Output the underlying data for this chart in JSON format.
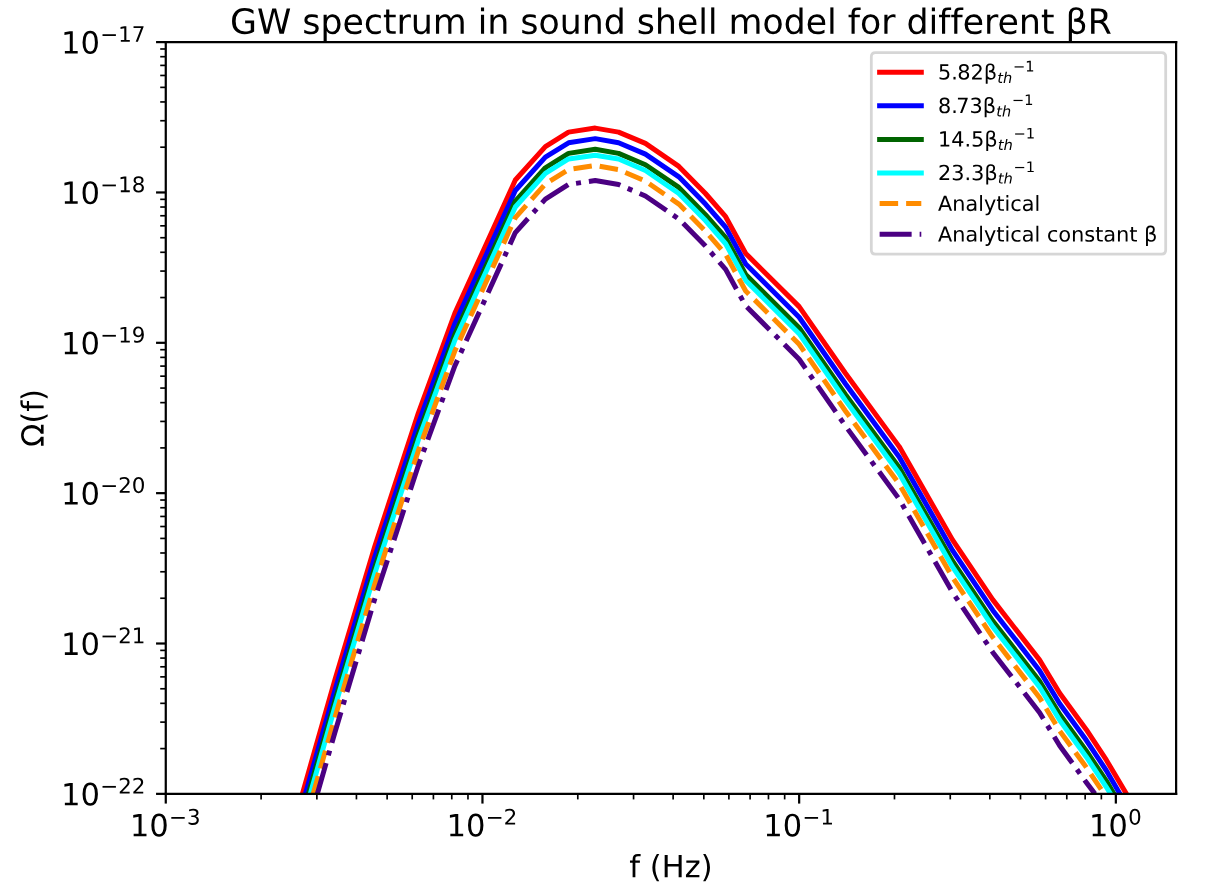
{
  "chart_data": {
    "type": "line",
    "title": "GW spectrum in sound shell model for different βR",
    "xlabel": "f (Hz)",
    "ylabel": "Ω(f)",
    "log": "xy",
    "grid": false,
    "legend": "top right",
    "xlim": [
      0.001,
      1.55
    ],
    "ylim": [
      1e-22,
      1e-17
    ],
    "xticks": [
      {
        "value": 0.001,
        "label": "10$^{−3}$"
      },
      {
        "value": 0.01,
        "label": "10$^{−2}$"
      },
      {
        "value": 0.1,
        "label": "10$^{−1}$"
      },
      {
        "value": 1,
        "label": "10$^{0}$"
      }
    ],
    "yticks": [
      {
        "value": 1e-22,
        "label": "10$^{−22}$"
      },
      {
        "value": 1e-21,
        "label": "10$^{−21}$"
      },
      {
        "value": 1e-20,
        "label": "10$^{−20}$"
      },
      {
        "value": 1e-19,
        "label": "10$^{−19}$"
      },
      {
        "value": 1e-18,
        "label": "10$^{−18}$"
      },
      {
        "value": 1e-17,
        "label": "10$^{−17}$"
      }
    ],
    "series": [
      {
        "name": "5.82β$_{th}$$^{−1}$",
        "color": "#ff0000",
        "line_style": "solid",
        "x": [
          0.0027,
          0.00342,
          0.00457,
          0.00627,
          0.00818,
          0.0102,
          0.0127,
          0.0158,
          0.0187,
          0.0227,
          0.0269,
          0.0327,
          0.0417,
          0.0506,
          0.0586,
          0.0678,
          0.1,
          0.14,
          0.207,
          0.305,
          0.409,
          0.574,
          0.665,
          0.807,
          0.933,
          1.08
        ],
        "values": [
          1e-22,
          5.73e-22,
          4.42e-21,
          3.4e-20,
          1.57e-19,
          4.37e-19,
          1.21e-18,
          2.02e-18,
          2.52e-18,
          2.68e-18,
          2.52e-18,
          2.12e-18,
          1.49e-18,
          9.84e-19,
          6.9e-19,
          3.93e-19,
          1.74e-19,
          6.27e-20,
          2.04e-20,
          4.89e-21,
          1.95e-21,
          7.78e-22,
          4.67e-22,
          2.67e-22,
          1.68e-22,
          1e-22
        ]
      },
      {
        "name": "8.73β$_{th}$$^{−1}$",
        "color": "#0000ff",
        "line_style": "solid",
        "x": [
          0.00276,
          0.00342,
          0.00457,
          0.00627,
          0.00818,
          0.0102,
          0.0127,
          0.0158,
          0.0187,
          0.0227,
          0.0269,
          0.0327,
          0.0417,
          0.0506,
          0.0586,
          0.0678,
          0.1,
          0.14,
          0.207,
          0.305,
          0.409,
          0.574,
          0.665,
          0.807,
          0.933,
          1.03
        ],
        "values": [
          1e-22,
          4.88e-22,
          3.76e-21,
          2.89e-20,
          1.34e-19,
          3.72e-19,
          1.03e-18,
          1.72e-18,
          2.14e-18,
          2.28e-18,
          2.14e-18,
          1.8e-18,
          1.27e-18,
          8.37e-19,
          5.87e-19,
          3.34e-19,
          1.48e-19,
          5.34e-20,
          1.74e-20,
          4.16e-21,
          1.66e-21,
          6.62e-22,
          3.97e-22,
          2.27e-22,
          1.43e-22,
          1e-22
        ]
      },
      {
        "name": "14.5β$_{th}$$^{−1}$",
        "color": "#006400",
        "line_style": "solid",
        "x": [
          0.00282,
          0.00342,
          0.00457,
          0.00627,
          0.00818,
          0.0102,
          0.0127,
          0.0158,
          0.0187,
          0.0227,
          0.0269,
          0.0327,
          0.0417,
          0.0506,
          0.0586,
          0.0678,
          0.1,
          0.14,
          0.207,
          0.305,
          0.409,
          0.574,
          0.665,
          0.807,
          0.933,
          0.986
        ],
        "values": [
          1e-22,
          4.15e-22,
          3.2e-21,
          2.46e-20,
          1.14e-19,
          3.16e-19,
          8.76e-19,
          1.46e-18,
          1.82e-18,
          1.94e-18,
          1.82e-18,
          1.53e-18,
          1.08e-18,
          7.12e-19,
          5e-19,
          2.85e-19,
          1.26e-19,
          4.54e-20,
          1.48e-20,
          3.54e-21,
          1.41e-21,
          5.63e-22,
          3.38e-22,
          1.93e-22,
          1.22e-22,
          1e-22
        ]
      },
      {
        "name": "23.3β$_{th}$$^{−1}$",
        "color": "#00ffff",
        "line_style": "solid",
        "x": [
          0.00286,
          0.00342,
          0.00457,
          0.00627,
          0.00818,
          0.0102,
          0.0127,
          0.0158,
          0.0187,
          0.0227,
          0.0269,
          0.0327,
          0.0417,
          0.0506,
          0.0586,
          0.0678,
          0.1,
          0.14,
          0.207,
          0.305,
          0.409,
          0.574,
          0.665,
          0.807,
          0.933,
          0.962
        ],
        "values": [
          1e-22,
          3.79e-22,
          2.92e-21,
          2.25e-20,
          1.04e-19,
          2.89e-19,
          8e-19,
          1.34e-18,
          1.67e-18,
          1.77e-18,
          1.67e-18,
          1.4e-18,
          9.85e-19,
          6.5e-19,
          4.56e-19,
          2.6e-19,
          1.15e-19,
          4.14e-20,
          1.35e-20,
          3.23e-21,
          1.29e-21,
          5.14e-22,
          3.09e-22,
          1.76e-22,
          1.11e-22,
          1e-22
        ]
      },
      {
        "name": "Analytical",
        "color": "#ff8c00",
        "line_style": "dashed",
        "x": [
          0.00292,
          0.00342,
          0.00457,
          0.00627,
          0.00818,
          0.0102,
          0.0127,
          0.0158,
          0.0187,
          0.0227,
          0.0269,
          0.0327,
          0.0417,
          0.0506,
          0.0586,
          0.0678,
          0.1,
          0.14,
          0.207,
          0.305,
          0.409,
          0.574,
          0.665,
          0.807,
          0.918
        ],
        "values": [
          1e-22,
          3.22e-22,
          2.48e-21,
          1.91e-20,
          8.82e-20,
          2.46e-19,
          6.8e-19,
          1.14e-18,
          1.42e-18,
          1.51e-18,
          1.42e-18,
          1.19e-18,
          8.37e-19,
          5.53e-19,
          3.88e-19,
          2.21e-19,
          9.78e-20,
          3.52e-20,
          1.15e-20,
          2.75e-21,
          1.1e-21,
          4.37e-22,
          2.62e-22,
          1.5e-22,
          1e-22
        ]
      },
      {
        "name": "Analytical constant β",
        "color": "#4b0082",
        "line_style": "dashdot",
        "x": [
          0.00301,
          0.00342,
          0.00457,
          0.00627,
          0.00818,
          0.0102,
          0.0127,
          0.0158,
          0.0187,
          0.0227,
          0.0269,
          0.0327,
          0.0417,
          0.0506,
          0.0586,
          0.0678,
          0.1,
          0.14,
          0.207,
          0.305,
          0.409,
          0.574,
          0.665,
          0.807,
          0.859
        ],
        "values": [
          1e-22,
          2.56e-22,
          1.98e-21,
          1.52e-20,
          7.02e-20,
          1.95e-19,
          5.41e-19,
          9.03e-19,
          1.13e-18,
          1.2e-18,
          1.13e-18,
          9.48e-19,
          6.66e-19,
          4.4e-19,
          3.08e-19,
          1.76e-19,
          7.78e-20,
          2.8e-20,
          9.12e-21,
          2.19e-21,
          8.72e-22,
          3.48e-22,
          2.09e-22,
          1.19e-22,
          1e-22
        ]
      }
    ]
  }
}
